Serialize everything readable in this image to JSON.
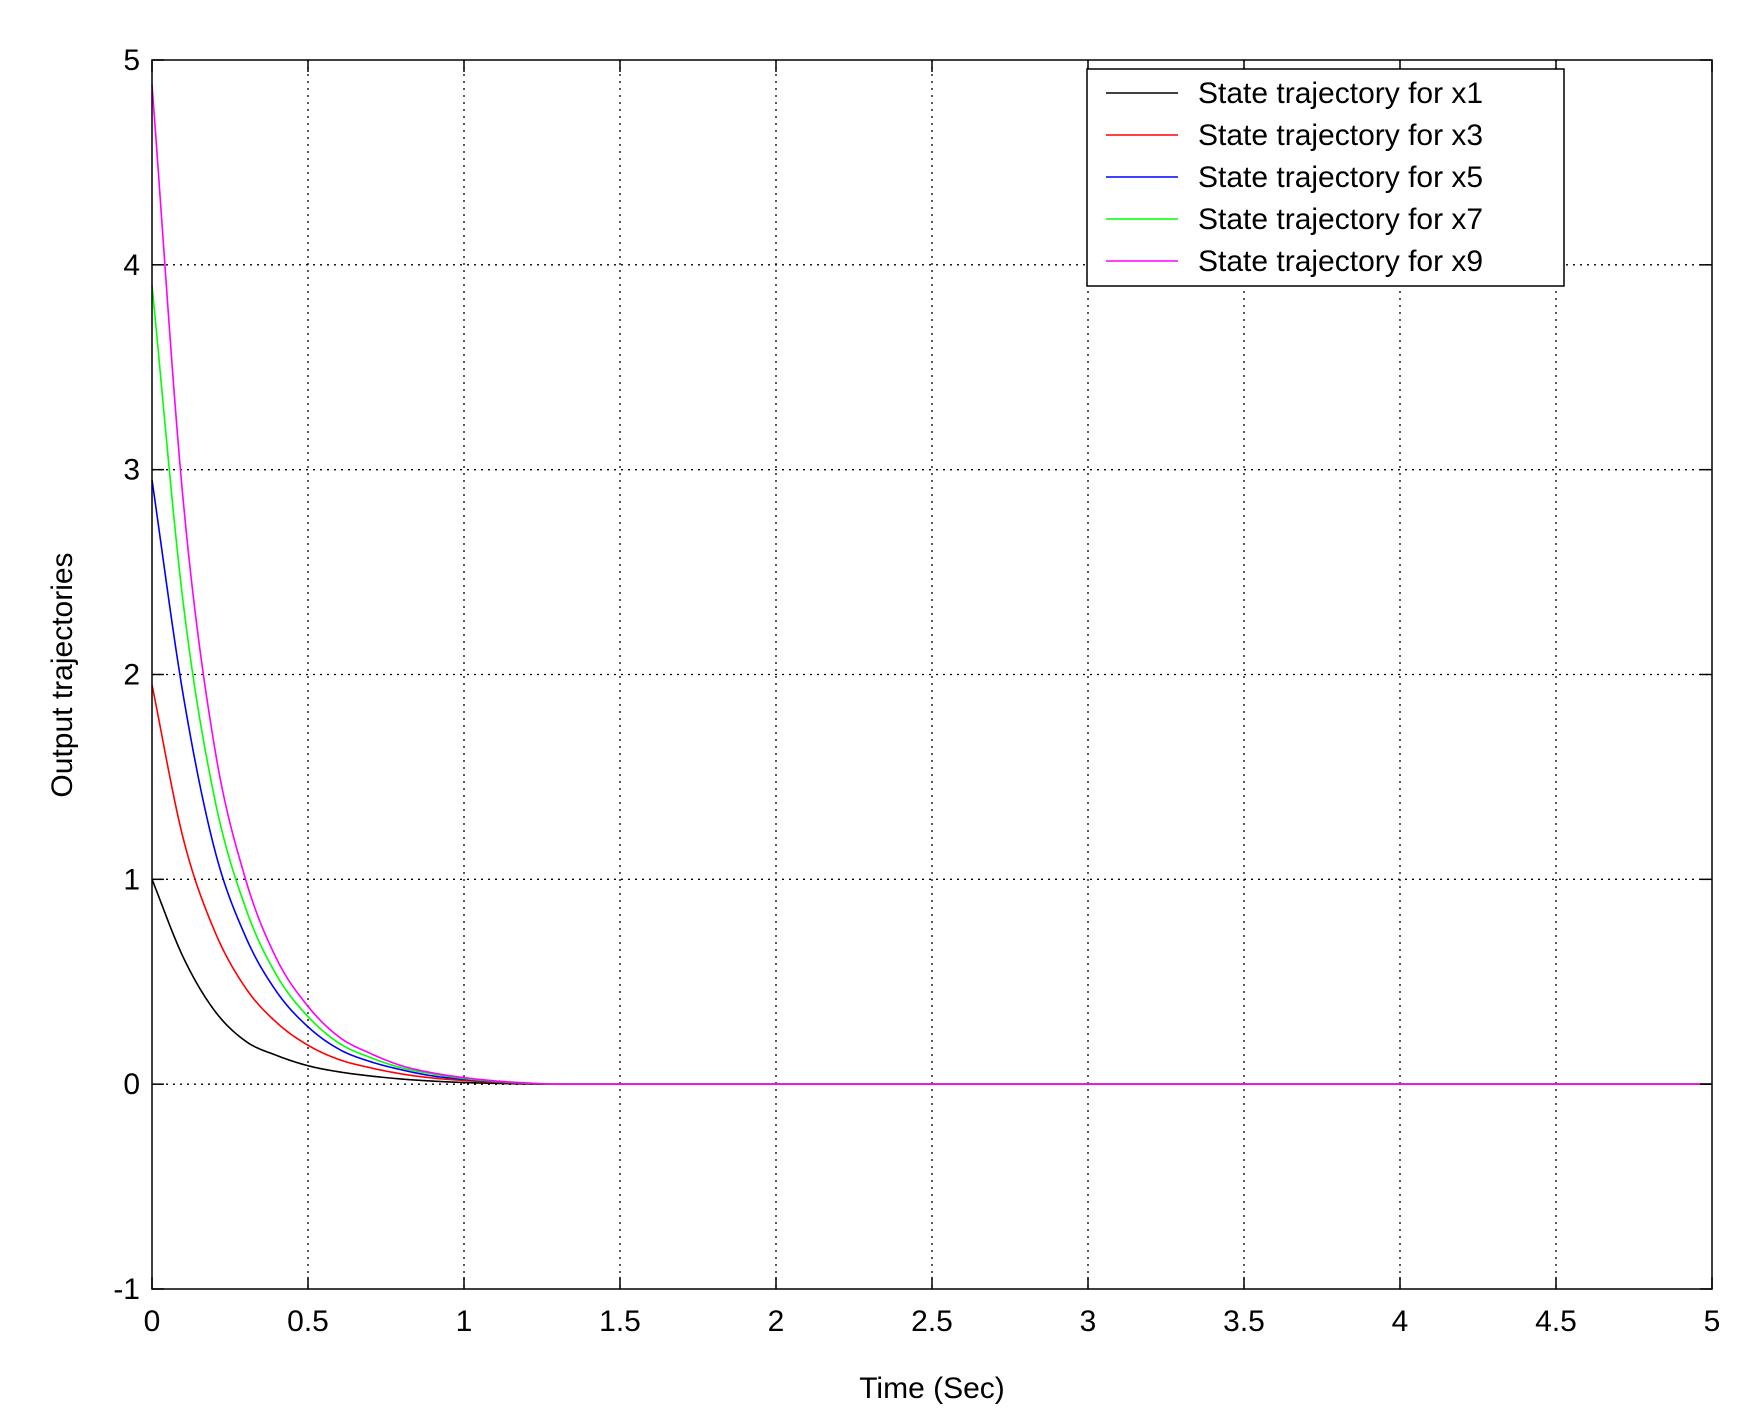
{
  "chart_data": {
    "type": "line",
    "title": "",
    "xlabel": "Time (Sec)",
    "ylabel": "Output trajectories",
    "xlim": [
      0,
      5
    ],
    "ylim": [
      -1,
      5
    ],
    "xticks": [
      "0",
      "0.5",
      "1",
      "1.5",
      "2",
      "2.5",
      "3",
      "3.5",
      "4",
      "4.5",
      "5"
    ],
    "yticks": [
      "-1",
      "0",
      "1",
      "2",
      "3",
      "4",
      "5"
    ],
    "grid": true,
    "legend_position": "top-right",
    "series": [
      {
        "name": "State trajectory for x1",
        "color": "#000000",
        "x": [
          0,
          0.1,
          0.2,
          0.3,
          0.4,
          0.5,
          0.6,
          0.7,
          0.8,
          0.9,
          1.0,
          1.1,
          1.2,
          1.3,
          5.0
        ],
        "y": [
          1.0,
          0.62,
          0.36,
          0.21,
          0.14,
          0.09,
          0.06,
          0.04,
          0.025,
          0.015,
          0.008,
          0.004,
          0.001,
          0.0,
          0.0
        ]
      },
      {
        "name": "State trajectory for x3",
        "color": "#ff0000",
        "x": [
          0,
          0.1,
          0.2,
          0.3,
          0.4,
          0.5,
          0.6,
          0.7,
          0.8,
          0.9,
          1.0,
          1.1,
          1.2,
          1.3,
          5.0
        ],
        "y": [
          1.95,
          1.2,
          0.75,
          0.47,
          0.3,
          0.19,
          0.12,
          0.08,
          0.05,
          0.03,
          0.018,
          0.009,
          0.003,
          0.0,
          0.0
        ]
      },
      {
        "name": "State trajectory for x5",
        "color": "#0000ff",
        "x": [
          0,
          0.1,
          0.2,
          0.3,
          0.4,
          0.5,
          0.6,
          0.7,
          0.8,
          0.9,
          1.0,
          1.1,
          1.2,
          1.3,
          5.0
        ],
        "y": [
          2.95,
          1.9,
          1.15,
          0.72,
          0.45,
          0.28,
          0.17,
          0.11,
          0.07,
          0.04,
          0.024,
          0.012,
          0.004,
          0.0,
          0.0
        ]
      },
      {
        "name": "State trajectory for x7",
        "color": "#00ff00",
        "x": [
          0,
          0.1,
          0.2,
          0.3,
          0.4,
          0.5,
          0.6,
          0.7,
          0.8,
          0.9,
          1.0,
          1.1,
          1.2,
          1.3,
          5.0
        ],
        "y": [
          3.9,
          2.35,
          1.4,
          0.86,
          0.53,
          0.33,
          0.2,
          0.13,
          0.08,
          0.05,
          0.028,
          0.014,
          0.005,
          0.0,
          0.0
        ]
      },
      {
        "name": "State trajectory for x9",
        "color": "#ff00ff",
        "x": [
          0,
          0.1,
          0.2,
          0.3,
          0.4,
          0.5,
          0.6,
          0.7,
          0.8,
          0.9,
          1.0,
          1.1,
          1.2,
          1.3,
          5.0
        ],
        "y": [
          4.88,
          2.85,
          1.65,
          1.0,
          0.61,
          0.38,
          0.23,
          0.15,
          0.09,
          0.055,
          0.032,
          0.016,
          0.006,
          0.0,
          0.0
        ]
      }
    ]
  }
}
